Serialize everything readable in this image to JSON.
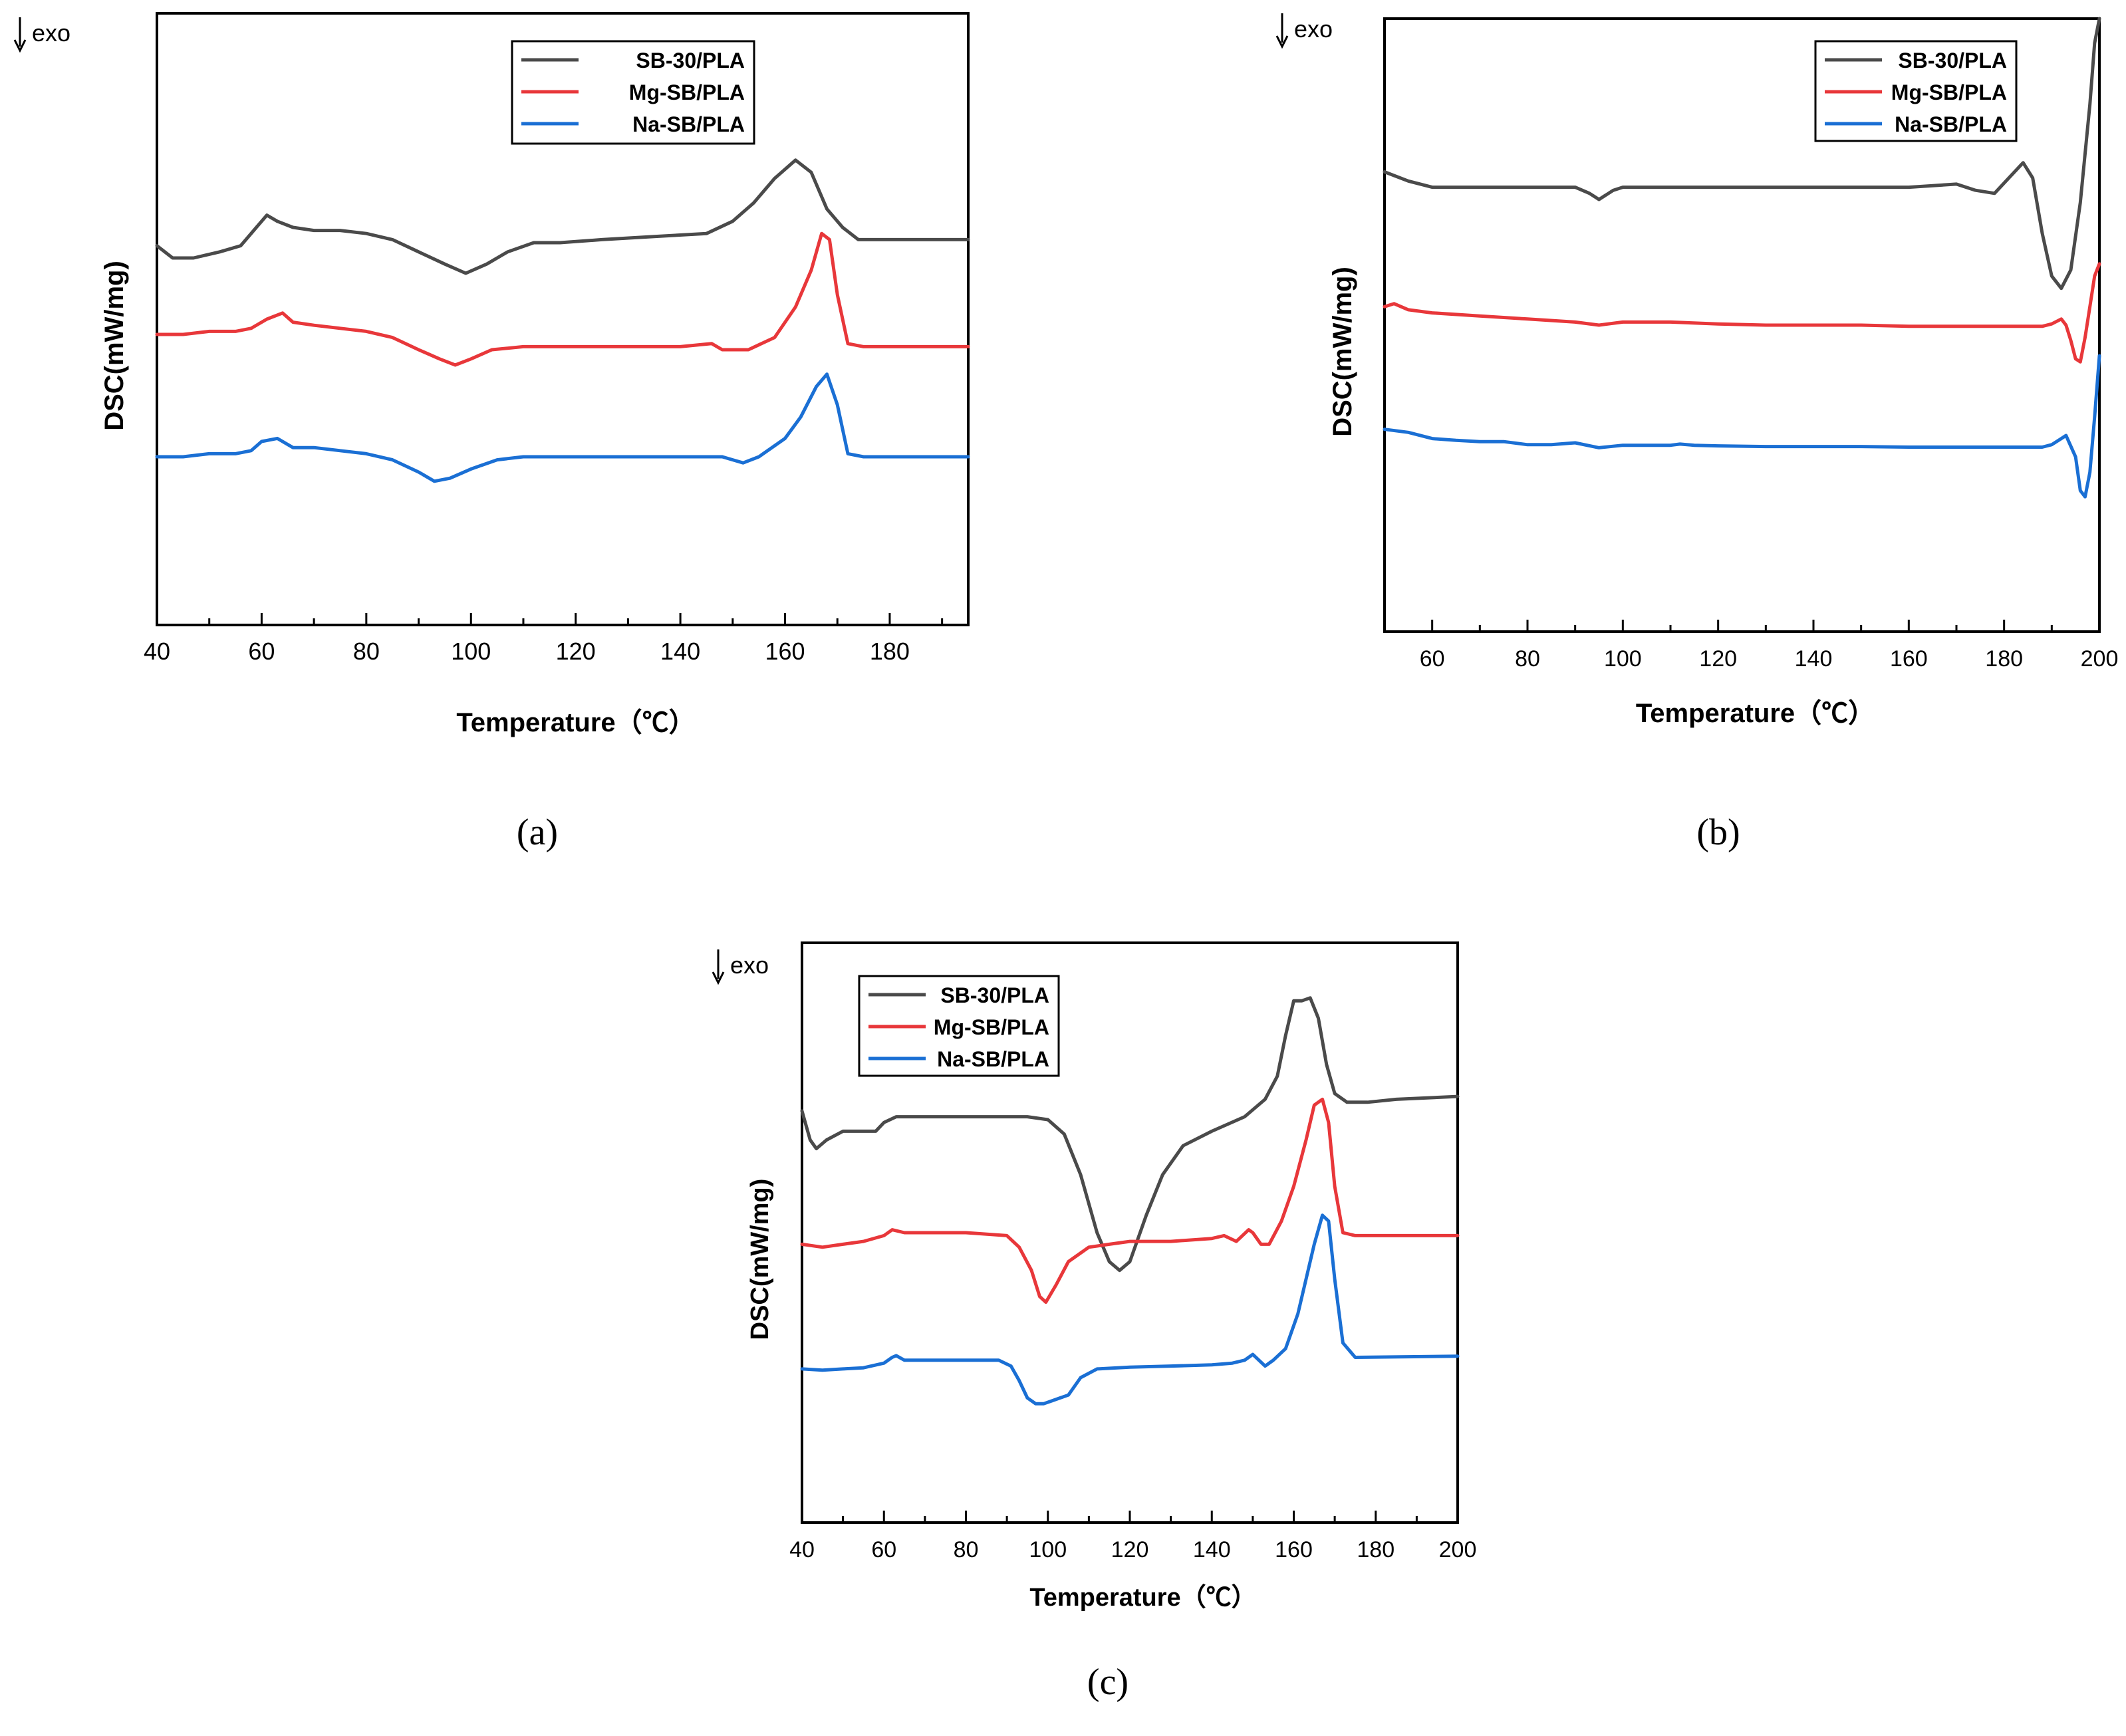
{
  "figure": {
    "series_colors": {
      "SB-30/PLA": "#4a4a4a",
      "Mg-SB/PLA": "#e8373a",
      "Na-SB/PLA": "#1a6fd4"
    }
  },
  "chart_data": [
    {
      "id": "a",
      "type": "line",
      "panel_label": "(a)",
      "exo_label": "exo",
      "xlabel": "Temperature（℃）",
      "ylabel": "DSC(mW/mg)",
      "xlim": [
        40,
        195
      ],
      "ylim": [
        0,
        100
      ],
      "xticks": [
        40,
        60,
        80,
        100,
        120,
        140,
        160,
        180
      ],
      "legend": [
        "SB-30/PLA",
        "Mg-SB/PLA",
        "Na-SB/PLA"
      ],
      "legend_position": "top-center",
      "series": [
        {
          "name": "SB-30/PLA",
          "x": [
            40,
            43,
            47,
            52,
            56,
            59,
            61,
            63,
            66,
            70,
            75,
            80,
            85,
            90,
            95,
            99,
            103,
            107,
            112,
            117,
            125,
            135,
            145,
            150,
            154,
            158,
            162,
            165,
            168,
            171,
            174,
            180,
            195
          ],
          "y": [
            62,
            60,
            60,
            61,
            62,
            65,
            67,
            66,
            65,
            64.5,
            64.5,
            64,
            63,
            61,
            59,
            57.5,
            59,
            61,
            62.5,
            62.5,
            63,
            63.5,
            64,
            66,
            69,
            73,
            76,
            74,
            68,
            65,
            63,
            63,
            63
          ]
        },
        {
          "name": "Mg-SB/PLA",
          "x": [
            40,
            45,
            50,
            55,
            58,
            61,
            64,
            66,
            70,
            75,
            80,
            85,
            90,
            94,
            97,
            100,
            104,
            110,
            115,
            120,
            130,
            140,
            146,
            148,
            150,
            153,
            158,
            162,
            165,
            167,
            168.5,
            170,
            172,
            175,
            195
          ],
          "y": [
            47.5,
            47.5,
            48,
            48,
            48.5,
            50,
            51,
            49.5,
            49,
            48.5,
            48,
            47,
            45,
            43.5,
            42.5,
            43.5,
            45,
            45.5,
            45.5,
            45.5,
            45.5,
            45.5,
            46,
            45,
            45,
            45,
            47,
            52,
            58,
            64,
            63,
            54,
            46,
            45.5,
            45.5
          ]
        },
        {
          "name": "Na-SB/PLA",
          "x": [
            40,
            45,
            50,
            55,
            58,
            60,
            63,
            66,
            70,
            75,
            80,
            85,
            90,
            93,
            96,
            100,
            105,
            110,
            115,
            120,
            130,
            140,
            148,
            150,
            152,
            155,
            160,
            163,
            166,
            168,
            170,
            172,
            175,
            195
          ],
          "y": [
            27.5,
            27.5,
            28,
            28,
            28.5,
            30,
            30.5,
            29,
            29,
            28.5,
            28,
            27,
            25,
            23.5,
            24,
            25.5,
            27,
            27.5,
            27.5,
            27.5,
            27.5,
            27.5,
            27.5,
            27,
            26.5,
            27.5,
            30.5,
            34,
            39,
            41,
            36,
            28,
            27.5,
            27.5
          ]
        }
      ]
    },
    {
      "id": "b",
      "type": "line",
      "panel_label": "(b)",
      "exo_label": "exo",
      "xlabel": "Temperature（℃）",
      "ylabel": "DSC(mW/mg)",
      "xlim": [
        50,
        200
      ],
      "ylim": [
        0,
        100
      ],
      "xticks": [
        60,
        80,
        100,
        120,
        140,
        160,
        180,
        200
      ],
      "legend": [
        "SB-30/PLA",
        "Mg-SB/PLA",
        "Na-SB/PLA"
      ],
      "legend_position": "top-right",
      "series": [
        {
          "name": "SB-30/PLA",
          "x": [
            50,
            55,
            60,
            70,
            80,
            90,
            93,
            95,
            98,
            100,
            110,
            120,
            130,
            140,
            150,
            160,
            170,
            174,
            178,
            181,
            184,
            186,
            188,
            190,
            192,
            194,
            196,
            198,
            199,
            200
          ],
          "y": [
            75,
            73.5,
            72.5,
            72.5,
            72.5,
            72.5,
            71.5,
            70.5,
            72,
            72.5,
            72.5,
            72.5,
            72.5,
            72.5,
            72.5,
            72.5,
            73,
            72,
            71.5,
            74,
            76.5,
            74,
            65,
            58,
            56,
            59,
            70,
            86,
            96,
            100
          ]
        },
        {
          "name": "Mg-SB/PLA",
          "x": [
            50,
            52,
            55,
            60,
            70,
            80,
            90,
            95,
            100,
            110,
            120,
            130,
            140,
            150,
            160,
            170,
            180,
            185,
            188,
            190,
            192,
            193,
            194,
            195,
            196,
            197,
            198,
            199,
            200
          ],
          "y": [
            53,
            53.5,
            52.5,
            52,
            51.5,
            51,
            50.5,
            50,
            50.5,
            50.5,
            50.2,
            50,
            50,
            50,
            49.8,
            49.8,
            49.8,
            49.8,
            49.8,
            50.2,
            51,
            50,
            47.5,
            44.5,
            44,
            48,
            53,
            58,
            60
          ]
        },
        {
          "name": "Na-SB/PLA",
          "x": [
            50,
            55,
            60,
            65,
            70,
            75,
            80,
            85,
            90,
            95,
            100,
            105,
            110,
            112,
            115,
            120,
            130,
            140,
            150,
            160,
            170,
            180,
            185,
            188,
            190,
            192,
            193,
            195,
            196,
            197,
            198,
            199,
            200
          ],
          "y": [
            33,
            32.5,
            31.5,
            31.2,
            31,
            31,
            30.5,
            30.5,
            30.8,
            30,
            30.4,
            30.4,
            30.4,
            30.6,
            30.4,
            30.3,
            30.2,
            30.2,
            30.2,
            30.1,
            30.1,
            30.1,
            30.1,
            30.1,
            30.5,
            31.5,
            32,
            28.5,
            23,
            22,
            26,
            35,
            45
          ]
        }
      ]
    },
    {
      "id": "c",
      "type": "line",
      "panel_label": "(c)",
      "exo_label": "exo",
      "xlabel": "Temperature（℃）",
      "ylabel": "DSC(mW/mg)",
      "xlim": [
        40,
        200
      ],
      "ylim": [
        0,
        100
      ],
      "xticks": [
        40,
        60,
        80,
        100,
        120,
        140,
        160,
        180,
        200
      ],
      "legend": [
        "SB-30/PLA",
        "Mg-SB/PLA",
        "Na-SB/PLA"
      ],
      "legend_position": "top-left",
      "series": [
        {
          "name": "SB-30/PLA",
          "x": [
            40,
            42,
            43.5,
            46,
            50,
            55,
            58,
            60,
            63,
            68,
            80,
            95,
            100,
            104,
            108,
            112,
            115,
            117.5,
            120,
            124,
            128,
            133,
            140,
            148,
            153,
            156,
            158,
            160,
            162,
            164,
            166,
            168,
            170,
            173,
            178,
            185,
            200
          ],
          "y": [
            71,
            66,
            64.5,
            66,
            67.5,
            67.5,
            67.5,
            69,
            70,
            70,
            70,
            70,
            69.5,
            67,
            60,
            50,
            45,
            43.5,
            45,
            53,
            60,
            65,
            67.5,
            70,
            73,
            77,
            84,
            90,
            90,
            90.5,
            87,
            79,
            74,
            72.5,
            72.5,
            73,
            73.5
          ]
        },
        {
          "name": "Mg-SB/PLA",
          "x": [
            40,
            45,
            50,
            55,
            60,
            62,
            65,
            70,
            80,
            90,
            93,
            96,
            98,
            99.5,
            102,
            105,
            110,
            115,
            120,
            130,
            140,
            143,
            146,
            149,
            150,
            152,
            154,
            157,
            160,
            163,
            165,
            167,
            168.5,
            170,
            172,
            175,
            200
          ],
          "y": [
            48,
            47.5,
            48,
            48.5,
            49.5,
            50.5,
            50,
            50,
            50,
            49.5,
            47.5,
            43.5,
            39,
            38,
            41,
            45,
            47.5,
            48,
            48.5,
            48.5,
            49,
            49.5,
            48.5,
            50.5,
            50,
            48,
            48,
            52,
            58,
            66,
            72,
            73,
            69,
            58,
            50,
            49.5,
            49.5
          ]
        },
        {
          "name": "Na-SB/PLA",
          "x": [
            40,
            45,
            50,
            55,
            60,
            62,
            63,
            65,
            70,
            75,
            80,
            88,
            91,
            93,
            95,
            97,
            99,
            101,
            103,
            105,
            108,
            112,
            120,
            130,
            140,
            145,
            148,
            150,
            153,
            155,
            158,
            161,
            163,
            165,
            167,
            168.5,
            170,
            172,
            175,
            200
          ],
          "y": [
            26.5,
            26.3,
            26.5,
            26.7,
            27.5,
            28.5,
            28.8,
            28,
            28,
            28,
            28,
            28,
            27,
            24.5,
            21.5,
            20.5,
            20.5,
            21,
            21.5,
            22,
            25,
            26.5,
            26.8,
            27,
            27.2,
            27.5,
            28,
            29,
            27,
            28,
            30,
            36,
            42,
            48,
            53,
            52,
            42,
            31,
            28.5,
            28.7
          ]
        }
      ]
    }
  ]
}
